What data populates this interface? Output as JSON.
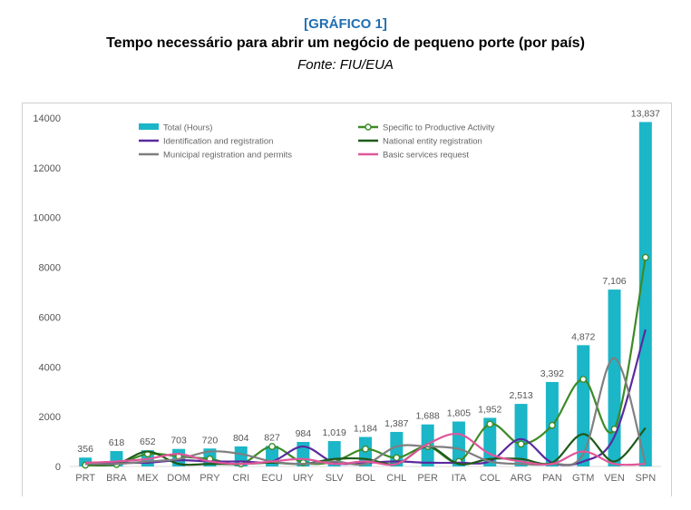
{
  "header": {
    "tag": "[GRÁFICO 1]",
    "title": "Tempo necessário para abrir um negócio de pequeno porte (por país)",
    "source": "Fonte: FIU/EUA"
  },
  "chart_data": {
    "type": "bar",
    "categories": [
      "PRT",
      "BRA",
      "MEX",
      "DOM",
      "PRY",
      "CRI",
      "ECU",
      "URY",
      "SLV",
      "BOL",
      "CHL",
      "PER",
      "ITA",
      "COL",
      "ARG",
      "PAN",
      "GTM",
      "VEN",
      "SPN"
    ],
    "ylim": [
      0,
      14000
    ],
    "yticks": [
      0,
      2000,
      4000,
      6000,
      8000,
      10000,
      12000,
      14000
    ],
    "grid": false,
    "legend_position": "top-left",
    "bar_series": {
      "name": "Total (Hours)",
      "color": "#1bb6c8",
      "values": [
        356,
        618,
        652,
        703,
        720,
        804,
        827,
        984,
        1019,
        1184,
        1387,
        1688,
        1805,
        1952,
        2513,
        3392,
        4872,
        7106,
        13837
      ],
      "labels": [
        "356",
        "618",
        "652",
        "703",
        "720",
        "804",
        "827",
        "984",
        "1,019",
        "1,184",
        "1,387",
        "1,688",
        "1,805",
        "1,952",
        "2,513",
        "3,392",
        "4,872",
        "7,106",
        "13,837"
      ]
    },
    "series": [
      {
        "name": "Specific to Productive Activity",
        "color": "#3d8a27",
        "marker": "circle",
        "values": [
          50,
          80,
          500,
          400,
          300,
          100,
          800,
          150,
          200,
          700,
          350,
          800,
          200,
          1700,
          900,
          1650,
          3500,
          1500,
          8400
        ]
      },
      {
        "name": "Identification and registration",
        "color": "#5a2a9e",
        "values": [
          150,
          150,
          150,
          250,
          200,
          200,
          200,
          800,
          150,
          150,
          200,
          150,
          150,
          200,
          1100,
          150,
          200,
          1200,
          5500
        ]
      },
      {
        "name": "National entity registration",
        "color": "#1e5a1a",
        "values": [
          100,
          100,
          600,
          100,
          100,
          100,
          150,
          100,
          300,
          300,
          100,
          800,
          100,
          300,
          300,
          150,
          1300,
          200,
          1550
        ]
      },
      {
        "name": "Municipal registration and permits",
        "color": "#7f7f7f",
        "values": [
          100,
          100,
          200,
          300,
          600,
          500,
          200,
          100,
          200,
          100,
          800,
          800,
          700,
          200,
          100,
          100,
          500,
          4350,
          100
        ]
      },
      {
        "name": "Basic services request",
        "color": "#e0579a",
        "values": [
          150,
          200,
          300,
          500,
          200,
          100,
          200,
          300,
          100,
          200,
          100,
          900,
          1300,
          500,
          200,
          100,
          600,
          100,
          100
        ]
      }
    ]
  }
}
